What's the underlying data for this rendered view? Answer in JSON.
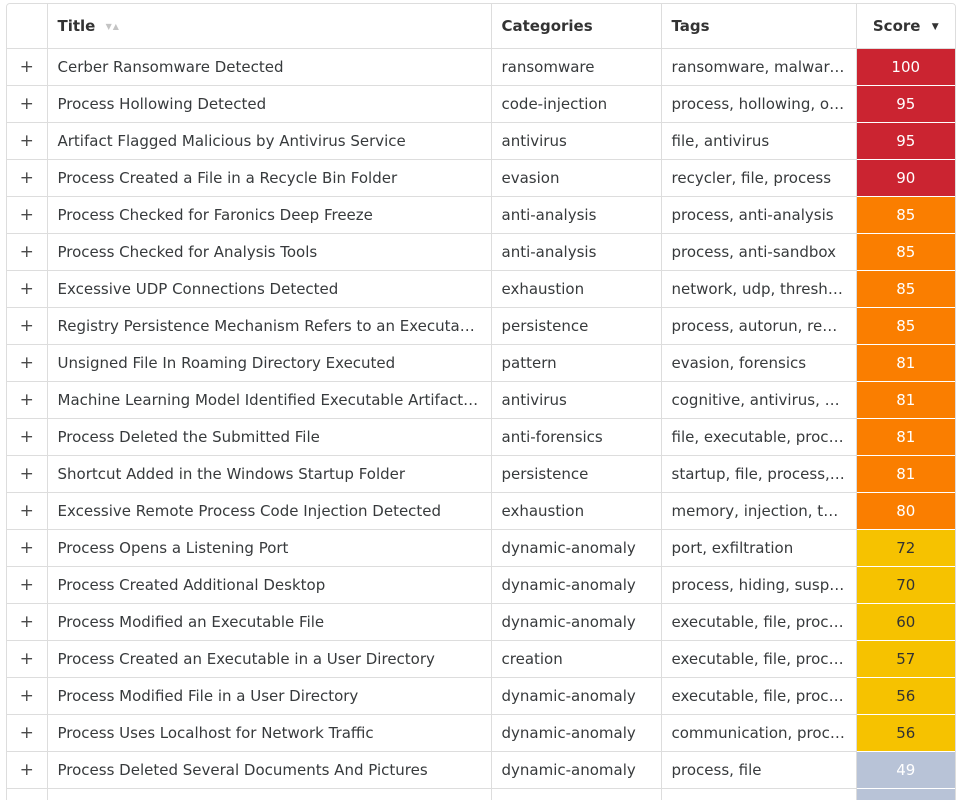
{
  "table": {
    "columns": {
      "expand": "",
      "title": "Title",
      "categories": "Categories",
      "tags": "Tags",
      "score": "Score"
    },
    "expand_symbol": "+",
    "icons": {
      "title_sort_both": "▼▲",
      "score_sort_desc": "▼"
    },
    "score_colors": {
      "critical": "#cb2431",
      "high": "#fa7e00",
      "medium": "#f6c200",
      "low": "#b8c3d7"
    },
    "score_text_colors": {
      "critical": "#ffffff",
      "high": "#ffffff",
      "medium": "#333333",
      "low": "#ffffff"
    },
    "rows": [
      {
        "title": "Cerber Ransomware Detected",
        "categories": "ransomware",
        "tags": "ransomware, malware, …",
        "score": "100",
        "level": "critical"
      },
      {
        "title": "Process Hollowing Detected",
        "categories": "code-injection",
        "tags": "process, hollowing, obfu…",
        "score": "95",
        "level": "critical"
      },
      {
        "title": "Artifact Flagged Malicious by Antivirus Service",
        "categories": "antivirus",
        "tags": "file, antivirus",
        "score": "95",
        "level": "critical"
      },
      {
        "title": "Process Created a File in a Recycle Bin Folder",
        "categories": "evasion",
        "tags": "recycler, file, process",
        "score": "90",
        "level": "critical"
      },
      {
        "title": "Process Checked for Faronics Deep Freeze",
        "categories": "anti-analysis",
        "tags": "process, anti-analysis",
        "score": "85",
        "level": "high"
      },
      {
        "title": "Process Checked for Analysis Tools",
        "categories": "anti-analysis",
        "tags": "process, anti-sandbox",
        "score": "85",
        "level": "high"
      },
      {
        "title": "Excessive UDP Connections Detected",
        "categories": "exhaustion",
        "tags": "network, udp, threshold",
        "score": "85",
        "level": "high"
      },
      {
        "title": "Registry Persistence Mechanism Refers to an Executable in…",
        "categories": "persistence",
        "tags": "process, autorun, regist…",
        "score": "85",
        "level": "high"
      },
      {
        "title": "Unsigned File In Roaming Directory Executed",
        "categories": "pattern",
        "tags": "evasion, forensics",
        "score": "81",
        "level": "high"
      },
      {
        "title": "Machine Learning Model Identified Executable Artifact as L…",
        "categories": "antivirus",
        "tags": "cognitive, antivirus, ma…",
        "score": "81",
        "level": "high"
      },
      {
        "title": "Process Deleted the Submitted File",
        "categories": "anti-forensics",
        "tags": "file, executable, process",
        "score": "81",
        "level": "high"
      },
      {
        "title": "Shortcut Added in the Windows Startup Folder",
        "categories": "persistence",
        "tags": "startup, file, process, au…",
        "score": "81",
        "level": "high"
      },
      {
        "title": "Excessive Remote Process Code Injection Detected",
        "categories": "exhaustion",
        "tags": "memory, injection, thre…",
        "score": "80",
        "level": "high"
      },
      {
        "title": "Process Opens a Listening Port",
        "categories": "dynamic-anomaly",
        "tags": "port, exfiltration",
        "score": "72",
        "level": "medium"
      },
      {
        "title": "Process Created Additional Desktop",
        "categories": "dynamic-anomaly",
        "tags": "process, hiding, suspicio…",
        "score": "70",
        "level": "medium"
      },
      {
        "title": "Process Modified an Executable File",
        "categories": "dynamic-anomaly",
        "tags": "executable, file, proces…",
        "score": "60",
        "level": "medium"
      },
      {
        "title": "Process Created an Executable in a User Directory",
        "categories": "creation",
        "tags": "executable, file, proces…",
        "score": "57",
        "level": "medium"
      },
      {
        "title": "Process Modified File in a User Directory",
        "categories": "dynamic-anomaly",
        "tags": "executable, file, process",
        "score": "56",
        "level": "medium"
      },
      {
        "title": "Process Uses Localhost for Network Traffic",
        "categories": "dynamic-anomaly",
        "tags": "communication, process",
        "score": "56",
        "level": "medium"
      },
      {
        "title": "Process Deleted Several Documents And Pictures",
        "categories": "dynamic-anomaly",
        "tags": "process, file",
        "score": "49",
        "level": "low"
      },
      {
        "title": "",
        "categories": "",
        "tags": "",
        "score": "",
        "level": "low",
        "partial": true
      }
    ]
  }
}
